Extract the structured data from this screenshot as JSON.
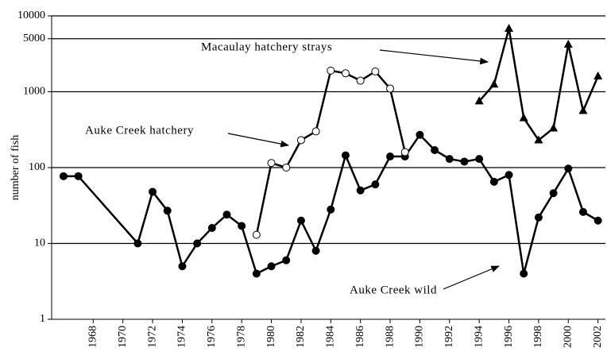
{
  "chart_data": {
    "type": "line",
    "y_label": "number of fish",
    "log_y": true,
    "grid": true,
    "xlim": [
      1965.2,
      2002.5
    ],
    "xticks": [
      1968,
      1970,
      1972,
      1974,
      1976,
      1978,
      1980,
      1982,
      1984,
      1986,
      1988,
      1990,
      1992,
      1994,
      1996,
      1998,
      2000,
      2002
    ],
    "ylim": [
      1,
      10000
    ],
    "yticks": [
      1,
      10,
      100,
      1000,
      5000,
      10000
    ],
    "series": [
      {
        "name": "Auke Creek wild",
        "color": "#000000",
        "marker": "filled-circle",
        "x": [
          1966,
          1967,
          1971,
          1972,
          1973,
          1974,
          1975,
          1976,
          1977,
          1978,
          1979,
          1980,
          1981,
          1982,
          1983,
          1984,
          1985,
          1986,
          1987,
          1988,
          1989,
          1990,
          1991,
          1992,
          1993,
          1994,
          1995,
          1996,
          1997,
          1998,
          1999,
          2000,
          2001,
          2002
        ],
        "values": [
          77,
          77,
          10,
          48,
          27,
          5,
          10,
          16,
          24,
          17,
          4,
          5,
          6,
          20,
          8,
          28,
          145,
          50,
          60,
          140,
          140,
          270,
          170,
          130,
          120,
          130,
          65,
          80,
          4,
          22,
          46,
          97,
          26,
          20
        ]
      },
      {
        "name": "Auke Creek hatchery",
        "color": "#000000",
        "marker": "open-circle",
        "x": [
          1979,
          1980,
          1981,
          1982,
          1983,
          1984,
          1985,
          1986,
          1987,
          1988,
          1989
        ],
        "values": [
          13,
          115,
          100,
          230,
          300,
          1900,
          1750,
          1400,
          1850,
          1100,
          160
        ]
      },
      {
        "name": "Macaulay hatchery strays",
        "color": "#000000",
        "marker": "triangle",
        "x": [
          1994,
          1995,
          1996,
          1997,
          1998,
          1999,
          2000,
          2001,
          2002
        ],
        "values": [
          750,
          1250,
          6800,
          450,
          230,
          330,
          4200,
          560,
          1600
        ]
      }
    ]
  }
}
